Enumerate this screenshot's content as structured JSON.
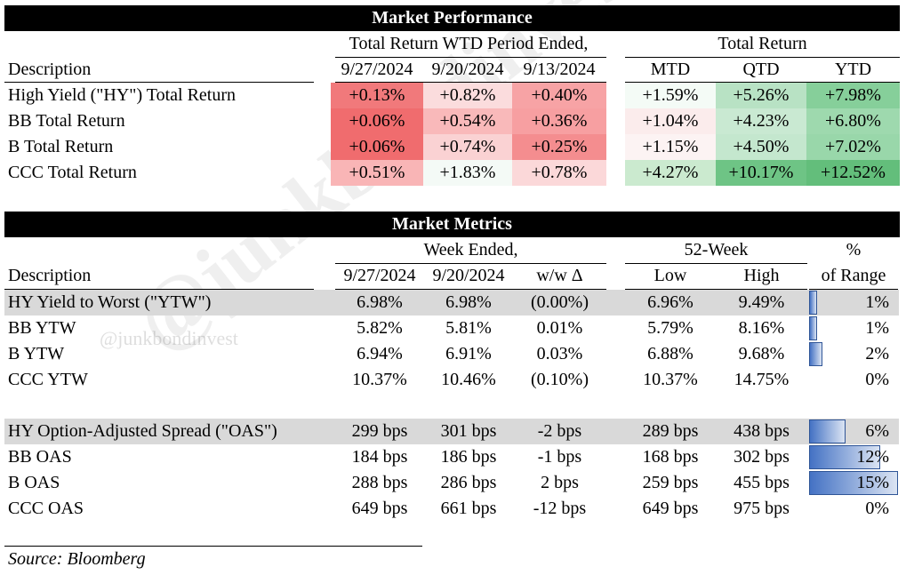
{
  "performance": {
    "title": "Market Performance",
    "group_wtd": "Total Return WTD Period Ended,",
    "group_total": "Total Return",
    "desc_header": "Description",
    "columns": [
      "9/27/2024",
      "9/20/2024",
      "9/13/2024",
      "MTD",
      "QTD",
      "YTD"
    ],
    "rows": [
      {
        "label": "High Yield (\"HY\") Total Return",
        "cells": [
          {
            "v": "+0.13%",
            "bg": "#f1797b"
          },
          {
            "v": "+0.82%",
            "bg": "#fbdcdd"
          },
          {
            "v": "+0.40%",
            "bg": "#f7a3a5"
          },
          {
            "v": "+1.59%",
            "bg": "#f4fbf6"
          },
          {
            "v": "+5.26%",
            "bg": "#b8e2c4"
          },
          {
            "v": "+7.98%",
            "bg": "#86cf9a"
          }
        ]
      },
      {
        "label": "BB Total Return",
        "cells": [
          {
            "v": "+0.06%",
            "bg": "#f06c6e"
          },
          {
            "v": "+0.54%",
            "bg": "#f9b9ba"
          },
          {
            "v": "+0.36%",
            "bg": "#f79fa1"
          },
          {
            "v": "+1.04%",
            "bg": "#fbecec"
          },
          {
            "v": "+4.23%",
            "bg": "#c9e9d2"
          },
          {
            "v": "+6.80%",
            "bg": "#9ed9ae"
          }
        ]
      },
      {
        "label": "B Total Return",
        "cells": [
          {
            "v": "+0.06%",
            "bg": "#f06c6e"
          },
          {
            "v": "+0.74%",
            "bg": "#fad2d3"
          },
          {
            "v": "+0.25%",
            "bg": "#f48d8f"
          },
          {
            "v": "+1.15%",
            "bg": "#fcf3f3"
          },
          {
            "v": "+4.50%",
            "bg": "#c4e7ce"
          },
          {
            "v": "+7.02%",
            "bg": "#99d7aa"
          }
        ]
      },
      {
        "label": "CCC Total Return",
        "cells": [
          {
            "v": "+0.51%",
            "bg": "#f9b5b6"
          },
          {
            "v": "+1.83%",
            "bg": "#f4faf6"
          },
          {
            "v": "+0.78%",
            "bg": "#fbd8d9"
          },
          {
            "v": "+4.27%",
            "bg": "#cbeacf"
          },
          {
            "v": "+10.17%",
            "bg": "#6ec485"
          },
          {
            "v": "+12.52%",
            "bg": "#63be7b"
          }
        ]
      }
    ]
  },
  "metrics": {
    "title": "Market Metrics",
    "group_week": "Week Ended,",
    "group_52": "52-Week",
    "group_pct": "%",
    "desc_header": "Description",
    "columns": [
      "9/27/2024",
      "9/20/2024",
      "w/w Δ",
      "Low",
      "High",
      "of Range"
    ],
    "rows": [
      {
        "label": "HY Yield to Worst (\"YTW\")",
        "shaded": true,
        "cells": [
          "6.98%",
          "6.98%",
          "(0.00%)",
          "6.96%",
          "9.49%",
          "1%"
        ],
        "range": 0.01
      },
      {
        "label": "BB YTW",
        "shaded": false,
        "cells": [
          "5.82%",
          "5.81%",
          "0.01%",
          "5.79%",
          "8.16%",
          "1%"
        ],
        "range": 0.01
      },
      {
        "label": "B YTW",
        "shaded": false,
        "cells": [
          "6.94%",
          "6.91%",
          "0.03%",
          "6.88%",
          "9.68%",
          "2%"
        ],
        "range": 0.02
      },
      {
        "label": "CCC YTW",
        "shaded": false,
        "cells": [
          "10.37%",
          "10.46%",
          "(0.10%)",
          "10.37%",
          "14.75%",
          "0%"
        ],
        "range": 0.0
      },
      {
        "label": "HY Option-Adjusted Spread (\"OAS\")",
        "shaded": true,
        "cells": [
          "299 bps",
          "301 bps",
          "-2 bps",
          "289 bps",
          "438 bps",
          "6%"
        ],
        "range": 0.06
      },
      {
        "label": "BB OAS",
        "shaded": false,
        "cells": [
          "184 bps",
          "186 bps",
          "-1 bps",
          "168 bps",
          "302 bps",
          "12%"
        ],
        "range": 0.12
      },
      {
        "label": "B OAS",
        "shaded": false,
        "cells": [
          "288 bps",
          "286 bps",
          "2 bps",
          "259 bps",
          "455 bps",
          "15%"
        ],
        "range": 0.15
      },
      {
        "label": "CCC OAS",
        "shaded": false,
        "cells": [
          "649 bps",
          "661 bps",
          "-12 bps",
          "649 bps",
          "975 bps",
          "0%"
        ],
        "range": 0.0
      }
    ]
  },
  "source": "Source: Bloomberg",
  "watermark": "@junkbondinvest"
}
